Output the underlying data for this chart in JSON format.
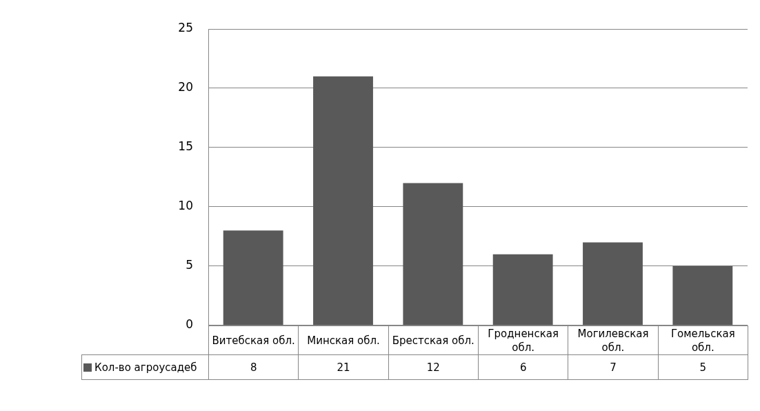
{
  "chart_data": {
    "type": "bar",
    "categories": [
      "Витебская обл.",
      "Минская обл.",
      "Брестская обл.",
      "Гродненская обл.",
      "Могилевская обл.",
      "Гомельская обл."
    ],
    "series": [
      {
        "name": "Кол-во агроусадеб",
        "color": "#595959",
        "values": [
          8,
          21,
          12,
          6,
          7,
          5
        ]
      }
    ],
    "ylim": [
      0,
      25
    ],
    "yticks": [
      0,
      5,
      10,
      15,
      20,
      25
    ],
    "grid": "y",
    "legend": "bottom",
    "data_labels": true
  }
}
